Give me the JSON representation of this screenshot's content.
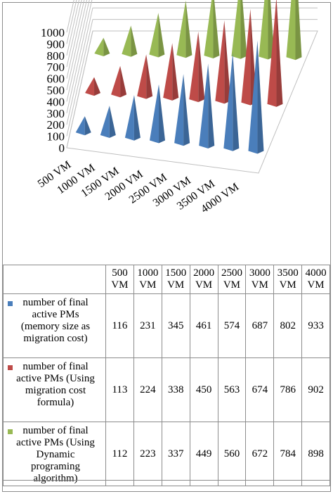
{
  "chart_data": {
    "type": "bar",
    "style": "3d-pyramid",
    "categories": [
      "500 VM",
      "1000 VM",
      "1500 VM",
      "2000 VM",
      "2500 VM",
      "3000 VM",
      "3500 VM",
      "4000 VM"
    ],
    "series": [
      {
        "name": "number of final active PMs (memory size as migration cost)",
        "color": "#4a7ebb",
        "values": [
          116,
          231,
          345,
          461,
          574,
          687,
          802,
          933
        ]
      },
      {
        "name": "number of final active PMs (Using migration cost formula)",
        "color": "#be4b48",
        "values": [
          113,
          224,
          338,
          450,
          563,
          674,
          786,
          902
        ]
      },
      {
        "name": "number of final active PMs (Using Dynamic programing algorithm)",
        "color": "#98b954",
        "values": [
          112,
          223,
          337,
          449,
          560,
          672,
          784,
          898
        ]
      }
    ],
    "ylim": [
      0,
      1000
    ],
    "yticks": [
      "0",
      "100",
      "200",
      "300",
      "400",
      "500",
      "600",
      "700",
      "800",
      "900",
      "1000"
    ],
    "grid": true,
    "legend": "table-below"
  },
  "table": {
    "header": [
      [
        "500",
        "VM"
      ],
      [
        "1000",
        "VM"
      ],
      [
        "1500",
        "VM"
      ],
      [
        "2000",
        "VM"
      ],
      [
        "2500",
        "VM"
      ],
      [
        "3000",
        "VM"
      ],
      [
        "3500",
        "VM"
      ],
      [
        "4000",
        "VM"
      ]
    ],
    "rows": [
      {
        "label": [
          "number of final",
          "active PMs",
          "(memory size as",
          "migration cost)"
        ],
        "color": "#4a7ebb",
        "values": [
          "116",
          "231",
          "345",
          "461",
          "574",
          "687",
          "802",
          "933"
        ]
      },
      {
        "label": [
          "number of final",
          "active PMs (Using",
          "migration cost",
          "formula)"
        ],
        "color": "#be4b48",
        "values": [
          "113",
          "224",
          "338",
          "450",
          "563",
          "674",
          "786",
          "902"
        ]
      },
      {
        "label": [
          "number of final",
          "active PMs (Using",
          "Dynamic",
          "programing",
          "algorithm)"
        ],
        "color": "#98b954",
        "values": [
          "112",
          "223",
          "337",
          "449",
          "560",
          "672",
          "784",
          "898"
        ]
      }
    ]
  }
}
